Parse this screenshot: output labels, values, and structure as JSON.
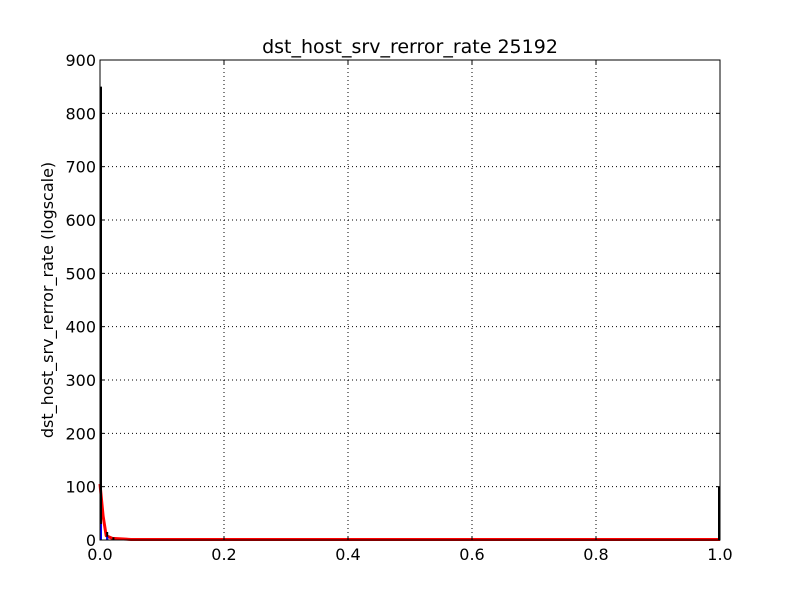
{
  "chart_data": {
    "type": "line",
    "title": "dst_host_srv_rerror_rate 25192",
    "xlabel": "",
    "ylabel": "dst_host_srv_rerror_rate (logscale)",
    "xlim": [
      0.0,
      1.0
    ],
    "ylim": [
      0,
      900
    ],
    "x_ticks": [
      "0.0",
      "0.2",
      "0.4",
      "0.6",
      "0.8",
      "1.0"
    ],
    "y_ticks": [
      "0",
      "100",
      "200",
      "300",
      "400",
      "500",
      "600",
      "700",
      "800",
      "900"
    ],
    "grid": true,
    "series": [
      {
        "color": "#ff0000",
        "style": "line",
        "x": [
          0.0,
          0.005,
          0.01,
          0.02,
          0.05,
          0.2,
          0.5,
          0.8,
          1.0
        ],
        "y": [
          105,
          45,
          8,
          3,
          1,
          1,
          1,
          1,
          1
        ]
      },
      {
        "color": "#000000",
        "style": "spikes",
        "x": [
          0.0,
          0.01,
          0.02,
          1.0
        ],
        "y": [
          850,
          15,
          5,
          100
        ]
      },
      {
        "color": "#0000ff",
        "style": "spikes",
        "x": [
          0.0,
          0.01
        ],
        "y": [
          30,
          6
        ]
      }
    ]
  }
}
